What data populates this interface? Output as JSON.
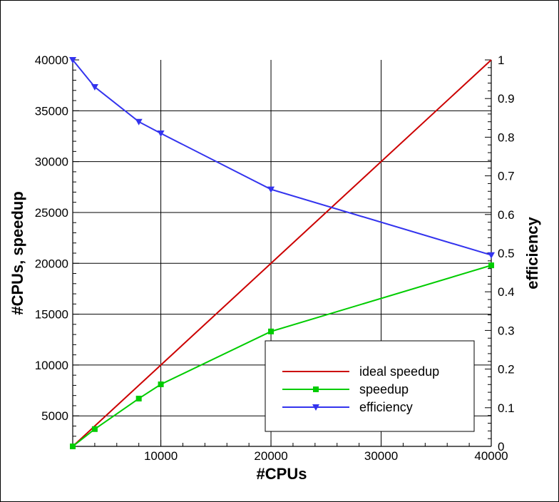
{
  "chart_data": {
    "type": "line",
    "title": "",
    "xlabel": "#CPUs",
    "ylabel_left": "#CPUs, speedup",
    "ylabel_right": "efficiency",
    "xlim": [
      2000,
      40000
    ],
    "ylim_left": [
      2000,
      40000
    ],
    "ylim_right": [
      0,
      1
    ],
    "x_ticks": [
      10000,
      20000,
      30000,
      40000
    ],
    "y_left_ticks": [
      5000,
      10000,
      15000,
      20000,
      25000,
      30000,
      35000,
      40000
    ],
    "y_right_ticks": [
      0,
      0.1,
      0.2,
      0.3,
      0.4,
      0.5,
      0.6,
      0.7,
      0.8,
      0.9,
      1
    ],
    "grid": true,
    "legend_position": "bottom-right",
    "series": [
      {
        "name": "ideal speedup",
        "axis": "left",
        "color": "#cc0000",
        "marker": "none",
        "x": [
          2000,
          40000
        ],
        "y": [
          2000,
          40000
        ]
      },
      {
        "name": "speedup",
        "axis": "left",
        "color": "#00cc00",
        "marker": "square",
        "x": [
          2000,
          4000,
          8000,
          10000,
          20000,
          40000
        ],
        "y": [
          2000,
          3700,
          6700,
          8100,
          13300,
          19800
        ]
      },
      {
        "name": "efficiency",
        "axis": "right",
        "color": "#3333ee",
        "marker": "triangle-down",
        "x": [
          2000,
          4000,
          8000,
          10000,
          20000,
          40000
        ],
        "y": [
          1.0,
          0.93,
          0.84,
          0.81,
          0.665,
          0.495
        ]
      }
    ]
  }
}
